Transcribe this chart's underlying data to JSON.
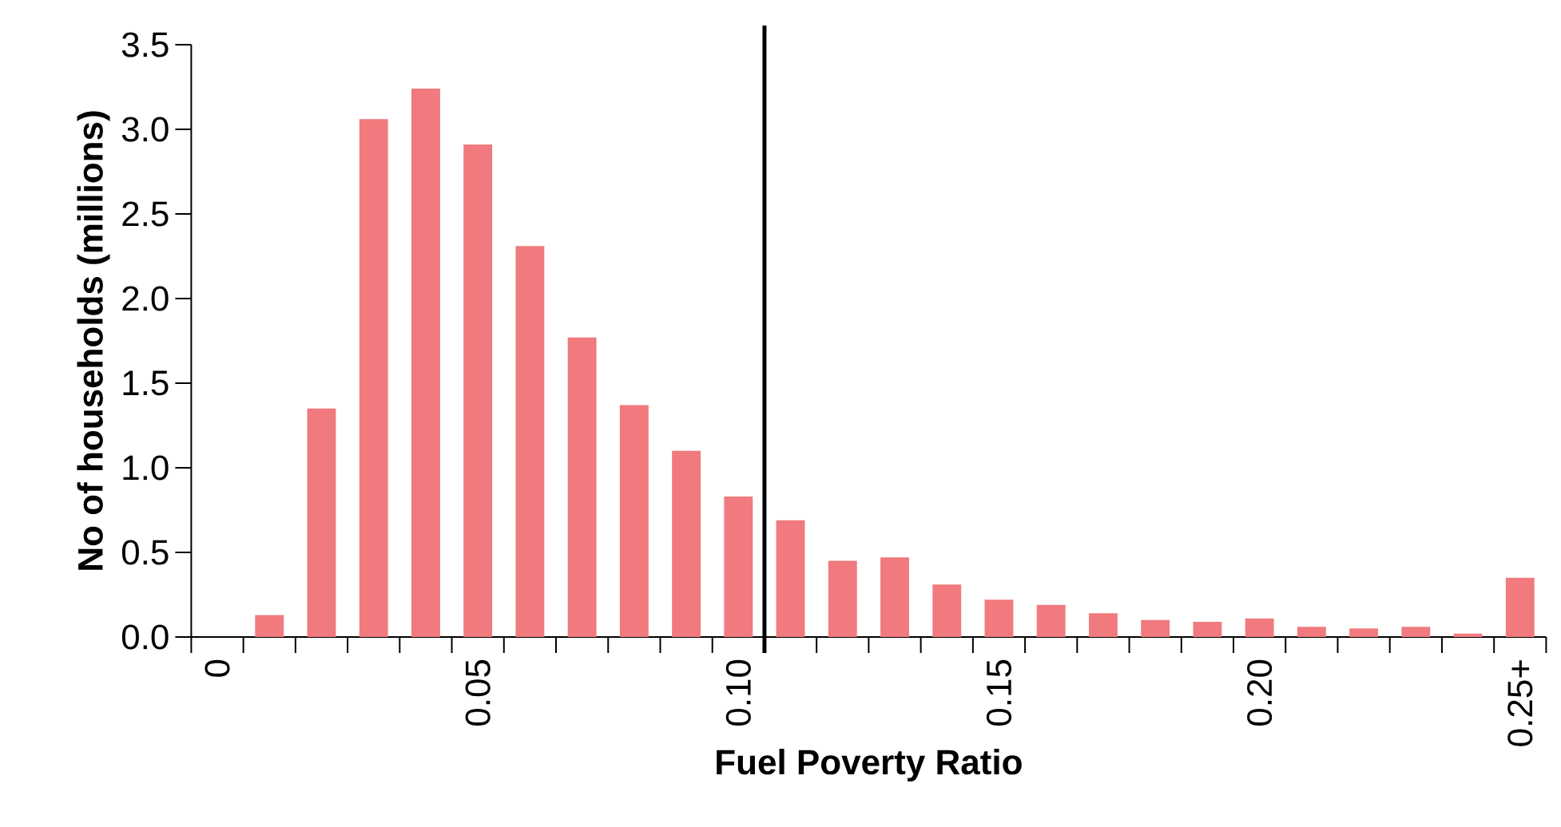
{
  "chart_data": {
    "type": "bar",
    "xlabel": "Fuel Poverty Ratio",
    "ylabel": "No of households (millions)",
    "x": [
      0,
      0.01,
      0.02,
      0.03,
      0.04,
      0.05,
      0.06,
      0.07,
      0.08,
      0.09,
      0.1,
      0.11,
      0.12,
      0.13,
      0.14,
      0.15,
      0.16,
      0.17,
      0.18,
      0.19,
      0.2,
      0.21,
      0.22,
      0.23,
      0.24,
      0.25
    ],
    "values": [
      0,
      0.13,
      1.35,
      3.06,
      3.24,
      2.91,
      2.31,
      1.77,
      1.37,
      1.1,
      0.83,
      0.69,
      0.45,
      0.47,
      0.31,
      0.22,
      0.19,
      0.14,
      0.1,
      0.09,
      0.11,
      0.06,
      0.05,
      0.06,
      0.02,
      0.35
    ],
    "color": "#f07a7d",
    "xlim": [
      -0.005,
      0.255
    ],
    "xticks": [
      {
        "value": 0,
        "label": "0"
      },
      {
        "value": 0.05,
        "label": "0.05"
      },
      {
        "value": 0.1,
        "label": "0.10"
      },
      {
        "value": 0.15,
        "label": "0.15"
      },
      {
        "value": 0.2,
        "label": "0.20"
      },
      {
        "value": 0.25,
        "label": "0.25+"
      },
      {
        "value": -0.005,
        "label": null
      },
      {
        "value": 0.005,
        "label": null
      },
      {
        "value": 0.015,
        "label": null
      },
      {
        "value": 0.025,
        "label": null
      },
      {
        "value": 0.035,
        "label": null
      },
      {
        "value": 0.045,
        "label": null
      },
      {
        "value": 0.055,
        "label": null
      },
      {
        "value": 0.065,
        "label": null
      },
      {
        "value": 0.075,
        "label": null
      },
      {
        "value": 0.085,
        "label": null
      },
      {
        "value": 0.095,
        "label": null
      },
      {
        "value": 0.105,
        "label": null
      },
      {
        "value": 0.115,
        "label": null
      },
      {
        "value": 0.125,
        "label": null
      },
      {
        "value": 0.135,
        "label": null
      },
      {
        "value": 0.145,
        "label": null
      },
      {
        "value": 0.155,
        "label": null
      },
      {
        "value": 0.165,
        "label": null
      },
      {
        "value": 0.175,
        "label": null
      },
      {
        "value": 0.185,
        "label": null
      },
      {
        "value": 0.195,
        "label": null
      },
      {
        "value": 0.205,
        "label": null
      },
      {
        "value": 0.215,
        "label": null
      },
      {
        "value": 0.225,
        "label": null
      },
      {
        "value": 0.235,
        "label": null
      },
      {
        "value": 0.245,
        "label": null
      },
      {
        "value": 0.255,
        "label": null
      }
    ],
    "ylim": [
      0,
      3.5
    ],
    "yticks": [
      {
        "value": 0,
        "label": "0.0"
      },
      {
        "value": 0.5,
        "label": "0.5"
      },
      {
        "value": 1,
        "label": "1.0"
      },
      {
        "value": 1.5,
        "label": "1.5"
      },
      {
        "value": 2,
        "label": "2.0"
      },
      {
        "value": 2.5,
        "label": "2.5"
      },
      {
        "value": 3,
        "label": "3.0"
      },
      {
        "value": 3.5,
        "label": "3.5"
      }
    ],
    "ref_lines": [
      {
        "axis": "x",
        "value": 0.105,
        "color": "#000000"
      }
    ],
    "grid": false
  }
}
